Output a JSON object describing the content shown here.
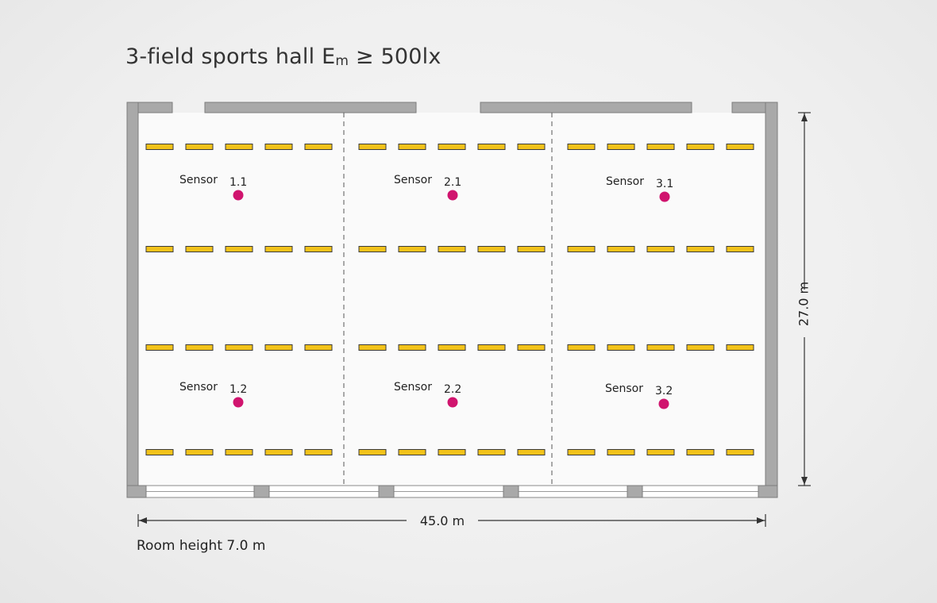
{
  "title": {
    "prefix": "3-field sports hall E",
    "subscript": "m",
    "suffix": " ≥ 500lx"
  },
  "dimensions": {
    "width_label": "45.0 m",
    "depth_label": "27.0 m"
  },
  "room_height_label": "Room height 7.0 m",
  "sensor_word": "Sensor",
  "sensors": [
    {
      "id": "1.1"
    },
    {
      "id": "1.2"
    },
    {
      "id": "2.1"
    },
    {
      "id": "2.2"
    },
    {
      "id": "3.1"
    },
    {
      "id": "3.2"
    }
  ],
  "colors": {
    "wall": "#a9a9a9",
    "luminaire": "#f2c21a",
    "sensor": "#d0146e",
    "floor": "#fafafa"
  },
  "layout_summary": {
    "fields": 3,
    "luminaire_rows": 4,
    "luminaires_per_row_per_field": 5
  }
}
